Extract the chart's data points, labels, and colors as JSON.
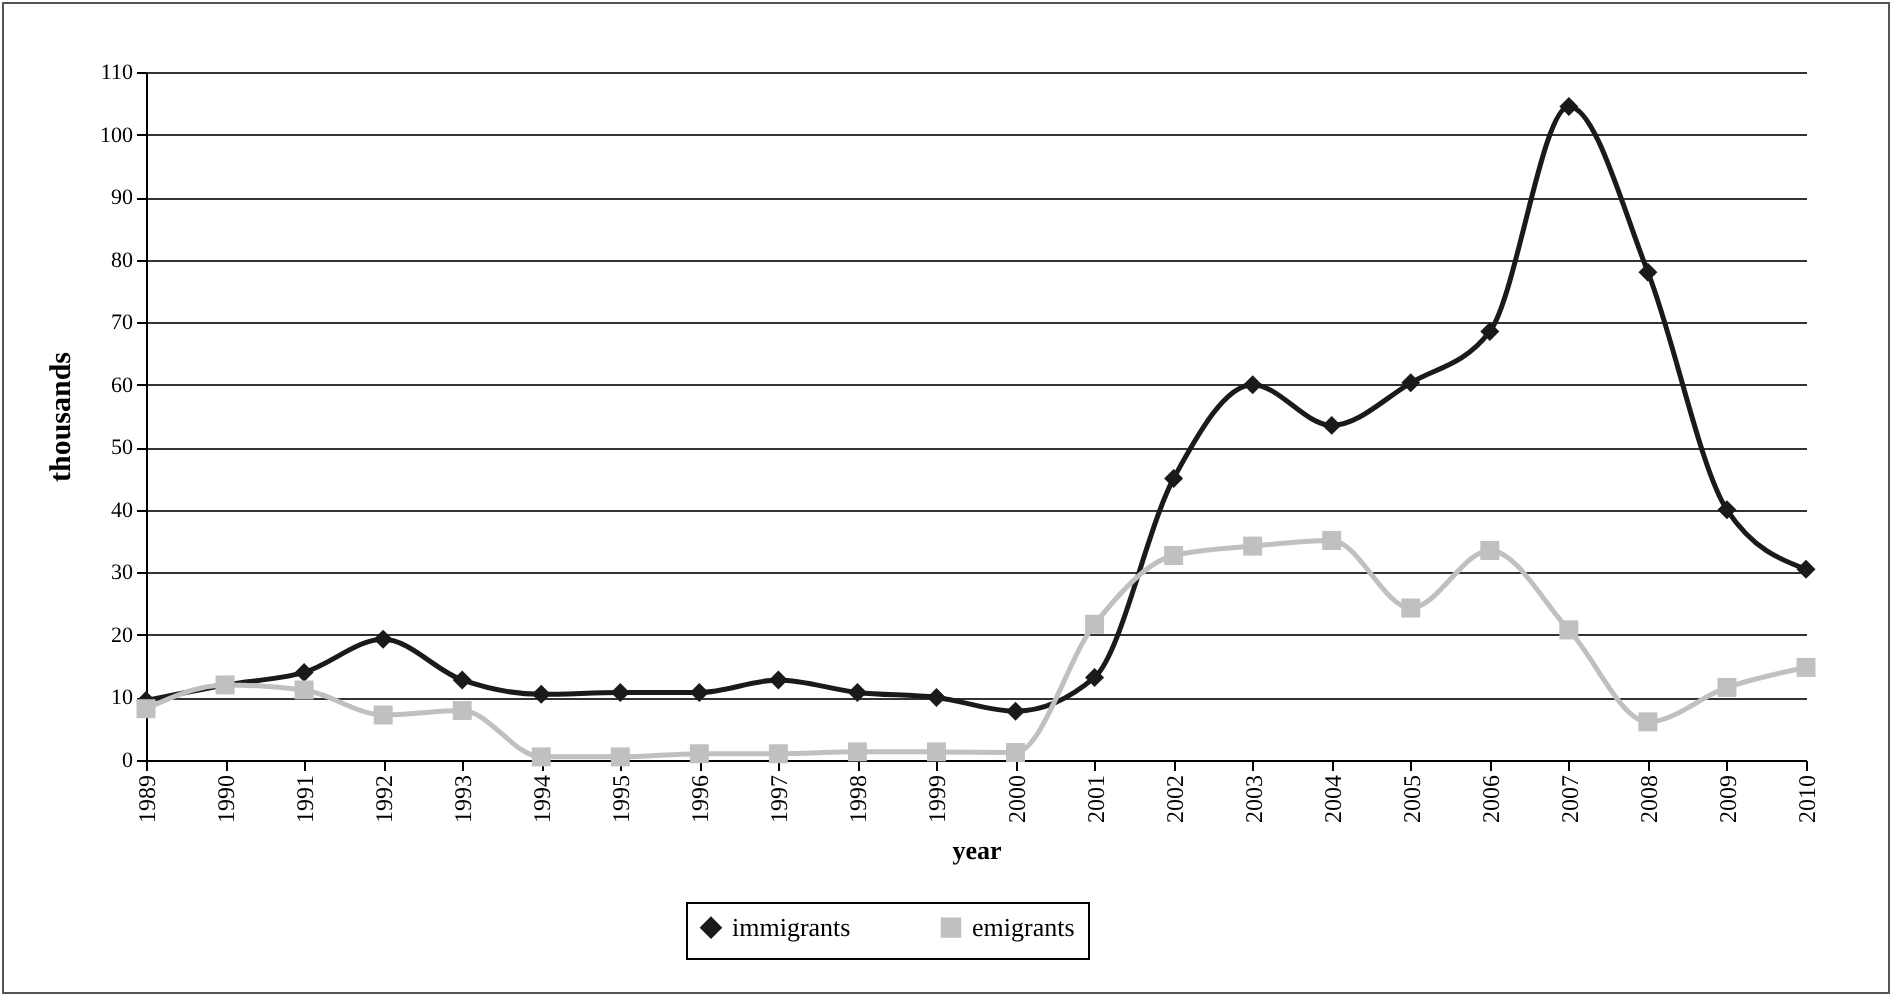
{
  "chart_data": {
    "type": "line",
    "xlabel": "year",
    "ylabel": "thousands",
    "categories": [
      "1989",
      "1990",
      "1991",
      "1992",
      "1993",
      "1994",
      "1995",
      "1996",
      "1997",
      "1998",
      "1999",
      "2000",
      "2001",
      "2002",
      "2003",
      "2004",
      "2005",
      "2006",
      "2007",
      "2008",
      "2009",
      "2010"
    ],
    "series": [
      {
        "name": "immigrants",
        "color": "#1a1a1a",
        "marker": "diamond",
        "values": [
          9.5,
          12,
          14,
          19.3,
          12.8,
          10.5,
          10.8,
          10.8,
          12.8,
          10.8,
          10,
          7.8,
          13.2,
          45,
          60,
          53.5,
          60.3,
          68.5,
          104.5,
          78,
          40,
          30.5
        ]
      },
      {
        "name": "emigrants",
        "color": "#c0c0c0",
        "marker": "square",
        "values": [
          8.2,
          12,
          11.2,
          7.2,
          7.9,
          0.5,
          0.5,
          1,
          1,
          1.3,
          1.3,
          1.2,
          21.7,
          32.7,
          34.2,
          35.1,
          24.3,
          33.5,
          20.8,
          6.1,
          11.6,
          14.8
        ]
      }
    ],
    "ylim": [
      0,
      110
    ],
    "yticks": [
      0,
      10,
      20,
      30,
      40,
      50,
      60,
      70,
      80,
      90,
      100,
      110
    ],
    "grid": "y",
    "legend": "bottom"
  }
}
